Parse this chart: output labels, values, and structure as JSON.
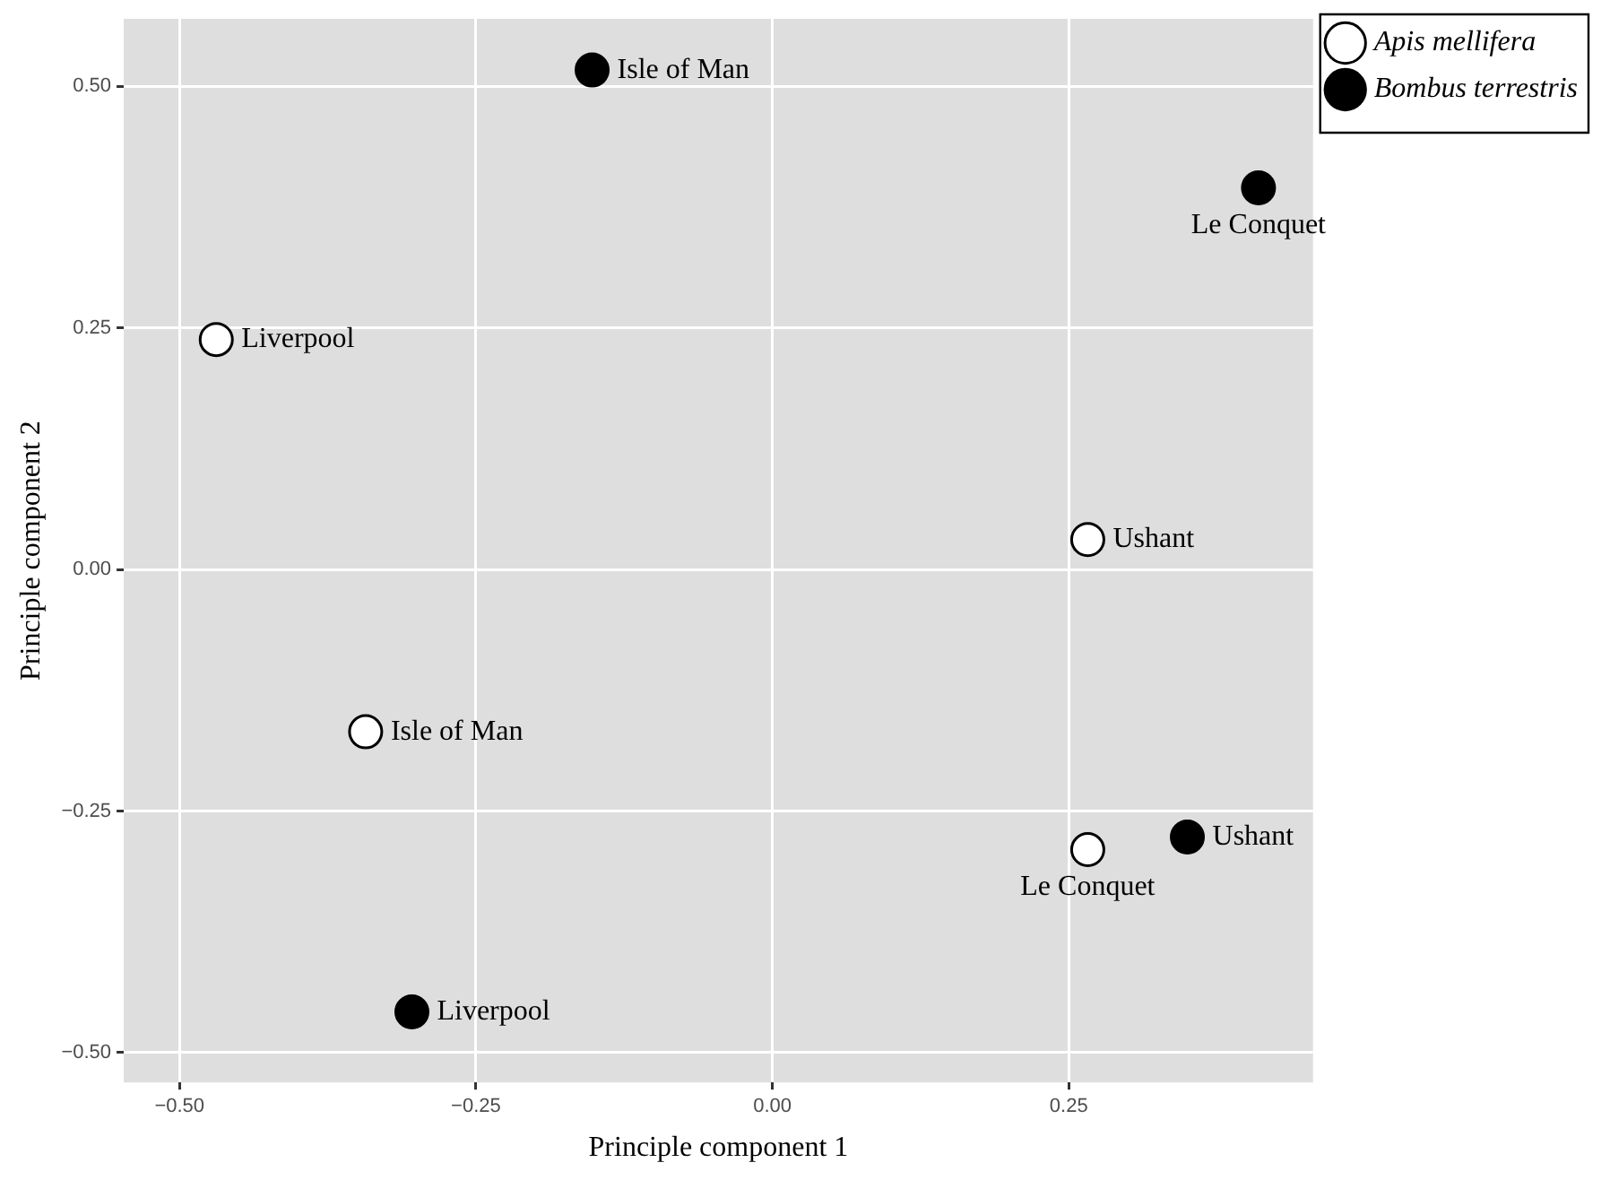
{
  "chart_data": {
    "type": "scatter",
    "xlabel": "Principle component 1",
    "ylabel": "Principle component 2",
    "series": [
      {
        "name": "Apis mellifera",
        "color": "#ffffff",
        "x": [
          -0.469,
          -0.343,
          0.266,
          0.266
        ],
        "values": [
          0.238,
          -0.168,
          0.031,
          -0.29
        ]
      },
      {
        "name": "Bombus terrestris",
        "color": "#000000",
        "x": [
          -0.152,
          0.41,
          0.35,
          -0.304
        ],
        "values": [
          0.517,
          0.395,
          -0.277,
          -0.458
        ]
      }
    ],
    "annotations": [
      {
        "text": "Liverpool",
        "x": -0.469,
        "y": 0.238
      },
      {
        "text": "Isle of Man",
        "x": -0.343,
        "y": -0.168
      },
      {
        "text": "Ushant",
        "x": 0.266,
        "y": 0.031
      },
      {
        "text": "Le Conquet",
        "x": 0.266,
        "y": -0.29
      },
      {
        "text": "Isle of Man",
        "x": -0.152,
        "y": 0.517
      },
      {
        "text": "Le Conquet",
        "x": 0.41,
        "y": 0.395
      },
      {
        "text": "Ushant",
        "x": 0.35,
        "y": -0.277
      },
      {
        "text": "Liverpool",
        "x": -0.304,
        "y": -0.458
      }
    ],
    "xlim": [
      -0.547,
      0.456
    ],
    "xticks": [
      {
        "value": -0.5,
        "label": "−0.50"
      },
      {
        "value": -0.25,
        "label": "−0.25"
      },
      {
        "value": 0,
        "label": "0.00"
      },
      {
        "value": 0.25,
        "label": "0.25"
      }
    ],
    "ylim": [
      -0.531,
      0.57
    ],
    "yticks": [
      {
        "value": -0.5,
        "label": "−0.50"
      },
      {
        "value": -0.25,
        "label": "−0.25"
      },
      {
        "value": 0,
        "label": "0.00"
      },
      {
        "value": 0.25,
        "label": "0.25"
      },
      {
        "value": 0.5,
        "label": "0.50"
      }
    ],
    "grid": true,
    "legend": "top right",
    "marker": "circle"
  }
}
